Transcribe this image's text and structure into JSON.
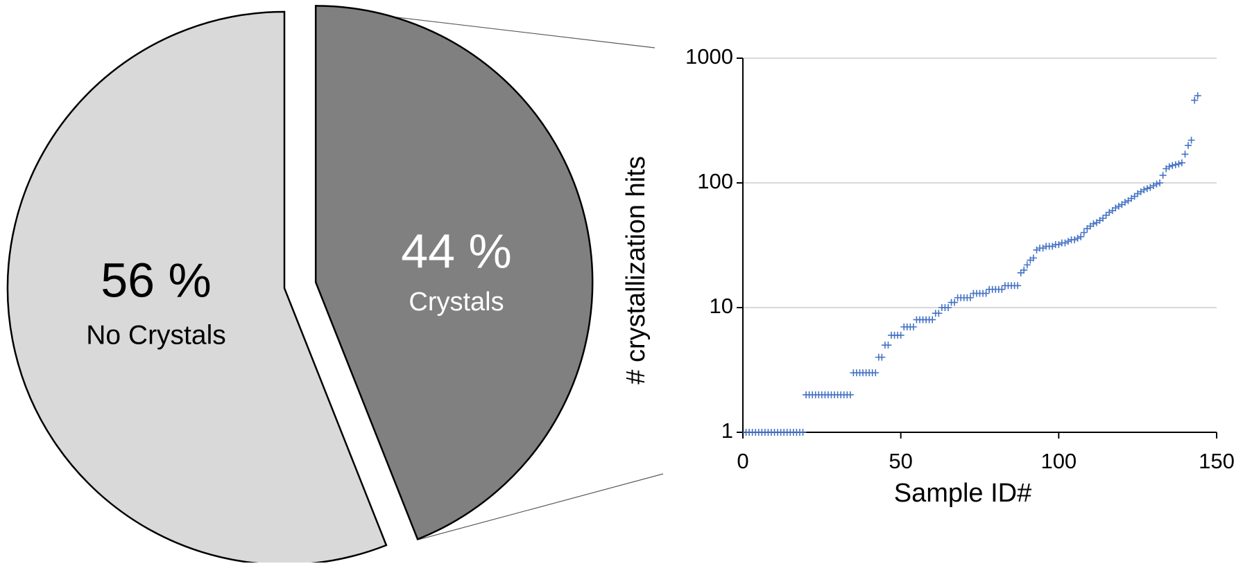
{
  "chart_data": [
    {
      "type": "pie",
      "categories": [
        "No Crystals",
        "Crystals"
      ],
      "values": [
        56,
        44
      ],
      "value_labels": [
        "56 %",
        "44 %"
      ],
      "colors": [
        "#d9d9d9",
        "#808080"
      ],
      "label_colors": [
        "#000000",
        "#ffffff"
      ],
      "explode": [
        false,
        true
      ]
    },
    {
      "type": "scatter",
      "xlabel": "Sample ID#",
      "ylabel": "# crystallization hits",
      "color": "#4472c4",
      "marker": "+",
      "log_y": true,
      "grid": true,
      "xlim": [
        0,
        150
      ],
      "xticks": [
        0,
        50,
        100,
        150
      ],
      "ylim": [
        1,
        1000
      ],
      "yticks": [
        1,
        10,
        100,
        1000
      ],
      "x": [
        1,
        2,
        3,
        4,
        5,
        6,
        7,
        8,
        9,
        10,
        11,
        12,
        13,
        14,
        15,
        16,
        17,
        18,
        19,
        20,
        21,
        22,
        23,
        24,
        25,
        26,
        27,
        28,
        29,
        30,
        31,
        32,
        33,
        34,
        35,
        36,
        37,
        38,
        39,
        40,
        41,
        42,
        43,
        44,
        45,
        46,
        47,
        48,
        49,
        50,
        51,
        52,
        53,
        54,
        55,
        56,
        57,
        58,
        59,
        60,
        61,
        62,
        63,
        64,
        65,
        66,
        67,
        68,
        69,
        70,
        71,
        72,
        73,
        74,
        75,
        76,
        77,
        78,
        79,
        80,
        81,
        82,
        83,
        84,
        85,
        86,
        87,
        88,
        89,
        90,
        91,
        92,
        93,
        94,
        95,
        96,
        97,
        98,
        99,
        100,
        101,
        102,
        103,
        104,
        105,
        106,
        107,
        108,
        109,
        110,
        111,
        112,
        113,
        114,
        115,
        116,
        117,
        118,
        119,
        120,
        121,
        122,
        123,
        124,
        125,
        126,
        127,
        128,
        129,
        130,
        131,
        132,
        133,
        134,
        135,
        136,
        137,
        138,
        139,
        140,
        141,
        142,
        143,
        144
      ],
      "values": [
        1,
        1,
        1,
        1,
        1,
        1,
        1,
        1,
        1,
        1,
        1,
        1,
        1,
        1,
        1,
        1,
        1,
        1,
        1,
        2,
        2,
        2,
        2,
        2,
        2,
        2,
        2,
        2,
        2,
        2,
        2,
        2,
        2,
        2,
        3,
        3,
        3,
        3,
        3,
        3,
        3,
        3,
        4,
        4,
        5,
        5,
        6,
        6,
        6,
        6,
        7,
        7,
        7,
        7,
        8,
        8,
        8,
        8,
        8,
        8,
        9,
        9,
        10,
        10,
        10,
        11,
        11,
        12,
        12,
        12,
        12,
        12,
        13,
        13,
        13,
        13,
        13,
        14,
        14,
        14,
        14,
        14,
        15,
        15,
        15,
        15,
        15,
        19,
        20,
        22,
        24,
        25,
        29,
        30,
        30,
        31,
        31,
        31,
        32,
        32,
        33,
        33,
        34,
        35,
        35,
        36,
        37,
        40,
        43,
        45,
        47,
        48,
        50,
        52,
        55,
        58,
        60,
        63,
        65,
        67,
        70,
        72,
        75,
        78,
        82,
        85,
        88,
        90,
        92,
        95,
        98,
        100,
        115,
        130,
        135,
        138,
        140,
        142,
        145,
        170,
        200,
        220,
        460,
        500
      ]
    }
  ]
}
